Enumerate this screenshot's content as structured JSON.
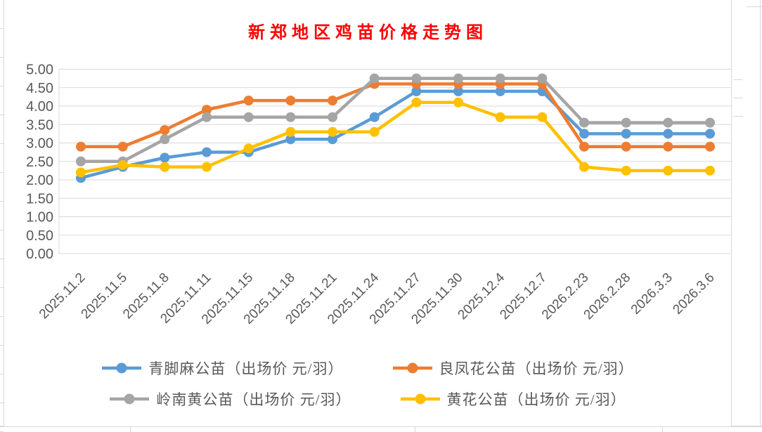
{
  "chart_data": {
    "type": "line",
    "title": "新郑地区鸡苗价格走势图",
    "title_color": "#FF0000",
    "xlabel": "",
    "ylabel": "",
    "ylim": [
      0,
      5
    ],
    "ytick_step": 0.5,
    "ytick_labels": [
      "5.00",
      "4.50",
      "4.00",
      "3.50",
      "3.00",
      "2.50",
      "2.00",
      "1.50",
      "1.00",
      "0.50",
      "0.00"
    ],
    "grid": true,
    "gridline_color": "#D9D9D9",
    "axis_text_color": "#595959",
    "legend_position": "bottom",
    "categories": [
      "2025.11.2",
      "2025.11.5",
      "2025.11.8",
      "2025.11.11",
      "2025.11.15",
      "2025.11.18",
      "2025.11.21",
      "2025.11.24",
      "2025.11.27",
      "2025.11.30",
      "2025.12.4",
      "2025.12.7",
      "2026.2.23",
      "2026.2.28",
      "2026.3.3",
      "2026.3.6"
    ],
    "series": [
      {
        "name": "青脚麻公苗（出场价 元/羽）",
        "color": "#5B9BD5",
        "values": [
          2.05,
          2.35,
          2.6,
          2.75,
          2.75,
          3.1,
          3.1,
          3.7,
          4.4,
          4.4,
          4.4,
          4.4,
          3.25,
          3.25,
          3.25,
          3.25
        ]
      },
      {
        "name": "良凤花公苗（出场价 元/羽）",
        "color": "#ED7D31",
        "values": [
          2.9,
          2.9,
          3.35,
          3.9,
          4.15,
          4.15,
          4.15,
          4.6,
          4.6,
          4.6,
          4.6,
          4.6,
          2.9,
          2.9,
          2.9,
          2.9
        ]
      },
      {
        "name": "岭南黄公苗（出场价 元/羽）",
        "color": "#A5A5A5",
        "values": [
          2.5,
          2.5,
          3.1,
          3.7,
          3.7,
          3.7,
          3.7,
          4.75,
          4.75,
          4.75,
          4.75,
          4.75,
          3.55,
          3.55,
          3.55,
          3.55
        ]
      },
      {
        "name": "黄花公苗（出场价 元/羽）",
        "color": "#FFC000",
        "values": [
          2.2,
          2.4,
          2.35,
          2.35,
          2.85,
          3.3,
          3.3,
          3.3,
          4.1,
          4.1,
          3.7,
          3.7,
          2.35,
          2.25,
          2.25,
          2.25
        ]
      }
    ]
  }
}
